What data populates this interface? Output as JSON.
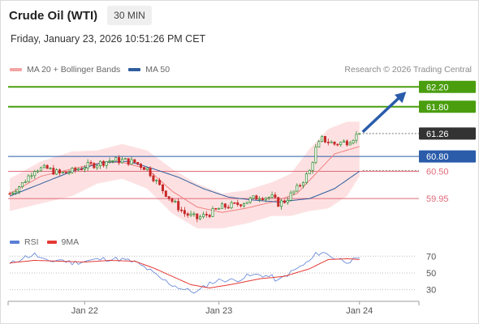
{
  "header": {
    "title": "Crude Oil (WTI)",
    "timeframe": "30 MIN",
    "timestamp": "Friday, January 23, 2026 10:51:26 PM CET",
    "credit": "Research © 2026 Trading Central"
  },
  "colors": {
    "green": "#4a9e0e",
    "blue": "#2a5caa",
    "red_line": "#e06b7a",
    "current_badge": "#333333",
    "bollinger_fill": "#fde1e2",
    "ma20": "#f08080",
    "ma50": "#2f5e9e",
    "rsi": "#5b7fd6",
    "rsi_ma": "#e53935",
    "candle_up": "#2e8b2e",
    "candle_down": "#c62828"
  },
  "chart_data": [
    {
      "type": "candlestick",
      "title": "Crude Oil (WTI)",
      "legend": [
        "MA 20 + Bollinger Bands",
        "MA 50"
      ],
      "x_tick_labels": [
        "Jan 22",
        "Jan 23",
        "Jan 24"
      ],
      "ylim": [
        59.3,
        62.4
      ],
      "levels": [
        {
          "value": 62.2,
          "label": "62.20",
          "kind": "resistance-target",
          "color": "#4a9e0e"
        },
        {
          "value": 61.8,
          "label": "61.80",
          "kind": "resistance",
          "color": "#4a9e0e"
        },
        {
          "value": 61.26,
          "label": "61.26",
          "kind": "current-price",
          "color": "#333333"
        },
        {
          "value": 60.8,
          "label": "60.80",
          "kind": "pivot",
          "color": "#2a5caa"
        },
        {
          "value": 60.5,
          "label": "60.50",
          "kind": "support",
          "color": "#e06b7a"
        },
        {
          "value": 59.95,
          "label": "59.95",
          "kind": "support",
          "color": "#e06b7a"
        }
      ],
      "close_path": [
        [
          0,
          60.05
        ],
        [
          4,
          60.25
        ],
        [
          8,
          60.55
        ],
        [
          12,
          60.55
        ],
        [
          16,
          60.45
        ],
        [
          20,
          60.5
        ],
        [
          24,
          60.6
        ],
        [
          28,
          60.65
        ],
        [
          32,
          60.72
        ],
        [
          36,
          60.72
        ],
        [
          40,
          60.68
        ],
        [
          44,
          60.55
        ],
        [
          48,
          60.2
        ],
        [
          52,
          59.9
        ],
        [
          56,
          59.65
        ],
        [
          60,
          59.55
        ],
        [
          64,
          59.65
        ],
        [
          68,
          59.78
        ],
        [
          72,
          59.82
        ],
        [
          76,
          59.9
        ],
        [
          80,
          60.0
        ],
        [
          84,
          59.97
        ],
        [
          86,
          59.85
        ],
        [
          88,
          59.9
        ],
        [
          92,
          60.15
        ],
        [
          96,
          60.5
        ],
        [
          98,
          60.95
        ],
        [
          100,
          61.15
        ],
        [
          104,
          61.05
        ],
        [
          108,
          61.1
        ],
        [
          112,
          61.26
        ]
      ],
      "ma20_path": [
        [
          0,
          60.05
        ],
        [
          10,
          60.4
        ],
        [
          20,
          60.55
        ],
        [
          30,
          60.68
        ],
        [
          36,
          60.68
        ],
        [
          44,
          60.55
        ],
        [
          52,
          60.1
        ],
        [
          60,
          59.78
        ],
        [
          68,
          59.67
        ],
        [
          76,
          59.76
        ],
        [
          84,
          59.88
        ],
        [
          92,
          60.05
        ],
        [
          98,
          60.45
        ],
        [
          104,
          60.85
        ],
        [
          112,
          61.0
        ]
      ],
      "ma50_path": [
        [
          0,
          60.0
        ],
        [
          10,
          60.25
        ],
        [
          20,
          60.5
        ],
        [
          30,
          60.68
        ],
        [
          38,
          60.7
        ],
        [
          46,
          60.55
        ],
        [
          54,
          60.38
        ],
        [
          62,
          60.15
        ],
        [
          70,
          59.98
        ],
        [
          78,
          59.92
        ],
        [
          86,
          59.88
        ],
        [
          96,
          59.95
        ],
        [
          104,
          60.15
        ],
        [
          112,
          60.5
        ]
      ],
      "bollinger_upper": [
        [
          0,
          60.35
        ],
        [
          10,
          60.7
        ],
        [
          20,
          60.9
        ],
        [
          28,
          60.92
        ],
        [
          36,
          61.05
        ],
        [
          44,
          60.92
        ],
        [
          52,
          60.55
        ],
        [
          60,
          60.25
        ],
        [
          68,
          60.05
        ],
        [
          76,
          60.12
        ],
        [
          84,
          60.28
        ],
        [
          90,
          60.45
        ],
        [
          96,
          60.95
        ],
        [
          102,
          61.35
        ],
        [
          108,
          61.5
        ],
        [
          112,
          61.5
        ]
      ],
      "bollinger_lower": [
        [
          0,
          59.7
        ],
        [
          10,
          59.85
        ],
        [
          20,
          60.0
        ],
        [
          28,
          60.25
        ],
        [
          36,
          60.35
        ],
        [
          44,
          60.15
        ],
        [
          52,
          59.65
        ],
        [
          60,
          59.35
        ],
        [
          68,
          59.35
        ],
        [
          76,
          59.45
        ],
        [
          84,
          59.6
        ],
        [
          90,
          59.6
        ],
        [
          96,
          59.7
        ],
        [
          102,
          59.75
        ],
        [
          108,
          60.0
        ],
        [
          112,
          60.4
        ]
      ],
      "projection": {
        "from": [
          112,
          61.26
        ],
        "to": [
          128,
          62.2
        ]
      }
    },
    {
      "type": "line",
      "title": "RSI",
      "legend": [
        "RSI",
        "9MA"
      ],
      "ylim": [
        20,
        78
      ],
      "y_ticks": [
        70,
        50,
        30
      ],
      "x_tick_labels": [
        "Jan 22",
        "Jan 23",
        "Jan 24"
      ],
      "series": [
        {
          "name": "RSI",
          "color": "#5b7fd6",
          "values": [
            [
              0,
              60
            ],
            [
              4,
              68
            ],
            [
              8,
              72
            ],
            [
              12,
              63
            ],
            [
              16,
              66
            ],
            [
              20,
              62
            ],
            [
              24,
              64
            ],
            [
              28,
              66
            ],
            [
              32,
              67
            ],
            [
              36,
              66
            ],
            [
              40,
              63
            ],
            [
              44,
              55
            ],
            [
              48,
              44
            ],
            [
              52,
              36
            ],
            [
              56,
              30
            ],
            [
              60,
              27
            ],
            [
              64,
              38
            ],
            [
              68,
              42
            ],
            [
              72,
              41
            ],
            [
              76,
              46
            ],
            [
              80,
              48
            ],
            [
              84,
              45
            ],
            [
              86,
              40
            ],
            [
              88,
              46
            ],
            [
              92,
              55
            ],
            [
              96,
              64
            ],
            [
              98,
              72
            ],
            [
              100,
              75
            ],
            [
              104,
              68
            ],
            [
              108,
              64
            ],
            [
              112,
              66
            ]
          ]
        },
        {
          "name": "9MA",
          "color": "#e53935",
          "values": [
            [
              0,
              62
            ],
            [
              8,
              65
            ],
            [
              16,
              64
            ],
            [
              24,
              63
            ],
            [
              32,
              65
            ],
            [
              40,
              64
            ],
            [
              46,
              56
            ],
            [
              52,
              46
            ],
            [
              58,
              36
            ],
            [
              64,
              32
            ],
            [
              72,
              37
            ],
            [
              80,
              43
            ],
            [
              88,
              46
            ],
            [
              96,
              55
            ],
            [
              102,
              66
            ],
            [
              108,
              67
            ],
            [
              112,
              66
            ]
          ]
        }
      ]
    }
  ]
}
